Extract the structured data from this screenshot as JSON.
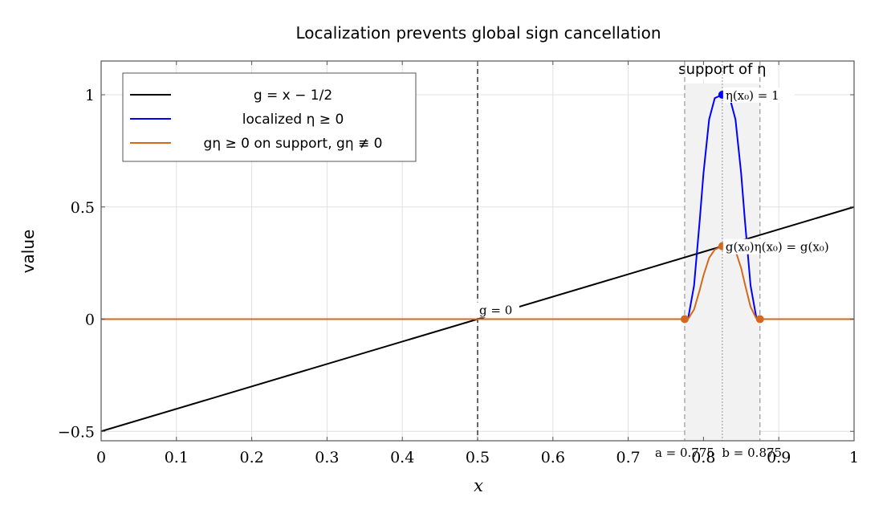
{
  "chart_data": {
    "type": "line",
    "title": "Localization prevents global sign cancellation",
    "xlabel": "x",
    "ylabel": "value",
    "xlim": [
      0,
      1
    ],
    "ylim": [
      -0.55,
      1.15
    ],
    "x_ticks": [
      0,
      0.1,
      0.2,
      0.3,
      0.4,
      0.5,
      0.6,
      0.7,
      0.8,
      0.9,
      1
    ],
    "x_tick_labels": [
      "0",
      "0.1",
      "0.2",
      "0.3",
      "0.4",
      "0.5",
      "0.6",
      "0.7",
      "0.8",
      "0.9",
      "1"
    ],
    "y_ticks": [
      -0.5,
      0,
      0.5,
      1
    ],
    "y_tick_labels": [
      "−0.5",
      "0",
      "0.5",
      "1"
    ],
    "grid": true,
    "legend_position": "top-left",
    "series": [
      {
        "name": "g = x − 1/2",
        "color": "#000000",
        "x": [
          0,
          1
        ],
        "y": [
          -0.5,
          0.5
        ]
      },
      {
        "name": "localized η ≥ 0",
        "color": "#0000ff",
        "x": [
          0,
          0.775,
          0.78,
          0.7875,
          0.795,
          0.8,
          0.8075,
          0.815,
          0.825,
          0.835,
          0.8425,
          0.85,
          0.855,
          0.8625,
          0.87,
          0.875,
          1
        ],
        "y": [
          0,
          0,
          0.01,
          0.15,
          0.44,
          0.65,
          0.89,
          0.985,
          1,
          0.985,
          0.89,
          0.65,
          0.44,
          0.15,
          0.01,
          0,
          0
        ]
      },
      {
        "name": "gη ≥ 0 on support, gη ≢ 0",
        "color": "#d2691e",
        "x": [
          0,
          0.775,
          0.78,
          0.7875,
          0.795,
          0.8,
          0.8075,
          0.815,
          0.825,
          0.835,
          0.8425,
          0.85,
          0.855,
          0.8625,
          0.87,
          0.875,
          1
        ],
        "y": [
          0,
          0,
          0.003,
          0.043,
          0.13,
          0.195,
          0.273,
          0.31,
          0.325,
          0.33,
          0.305,
          0.228,
          0.156,
          0.055,
          0.004,
          0,
          0
        ]
      }
    ],
    "support": {
      "a": 0.775,
      "b": 0.875,
      "label": "support of η"
    },
    "vertical_lines": [
      {
        "x": 0.5,
        "style": "dashed",
        "color": "#000000"
      },
      {
        "x": 0.775,
        "style": "dashed",
        "color": "#999999"
      },
      {
        "x": 0.875,
        "style": "dashed",
        "color": "#999999"
      },
      {
        "x": 0.825,
        "style": "dotted",
        "color": "#999999"
      }
    ],
    "markers": [
      {
        "x": 0.825,
        "y": 1,
        "color": "#0000ff"
      },
      {
        "x": 0.825,
        "y": 0.325,
        "color": "#d2691e"
      },
      {
        "x": 0.775,
        "y": 0,
        "color": "#d2691e"
      },
      {
        "x": 0.875,
        "y": 0,
        "color": "#d2691e"
      }
    ],
    "annotations": [
      {
        "text": "g = 0",
        "x": 0.5,
        "y": 0
      },
      {
        "text": "η(x₀) = 1",
        "x": 0.825,
        "y": 1
      },
      {
        "text": "g(x₀)η(x₀) = g(x₀)",
        "x": 0.825,
        "y": 0.325
      },
      {
        "text": "a = 0.775",
        "x": 0.775,
        "y": -0.55
      },
      {
        "text": "b = 0.875",
        "x": 0.875,
        "y": -0.55
      }
    ]
  }
}
